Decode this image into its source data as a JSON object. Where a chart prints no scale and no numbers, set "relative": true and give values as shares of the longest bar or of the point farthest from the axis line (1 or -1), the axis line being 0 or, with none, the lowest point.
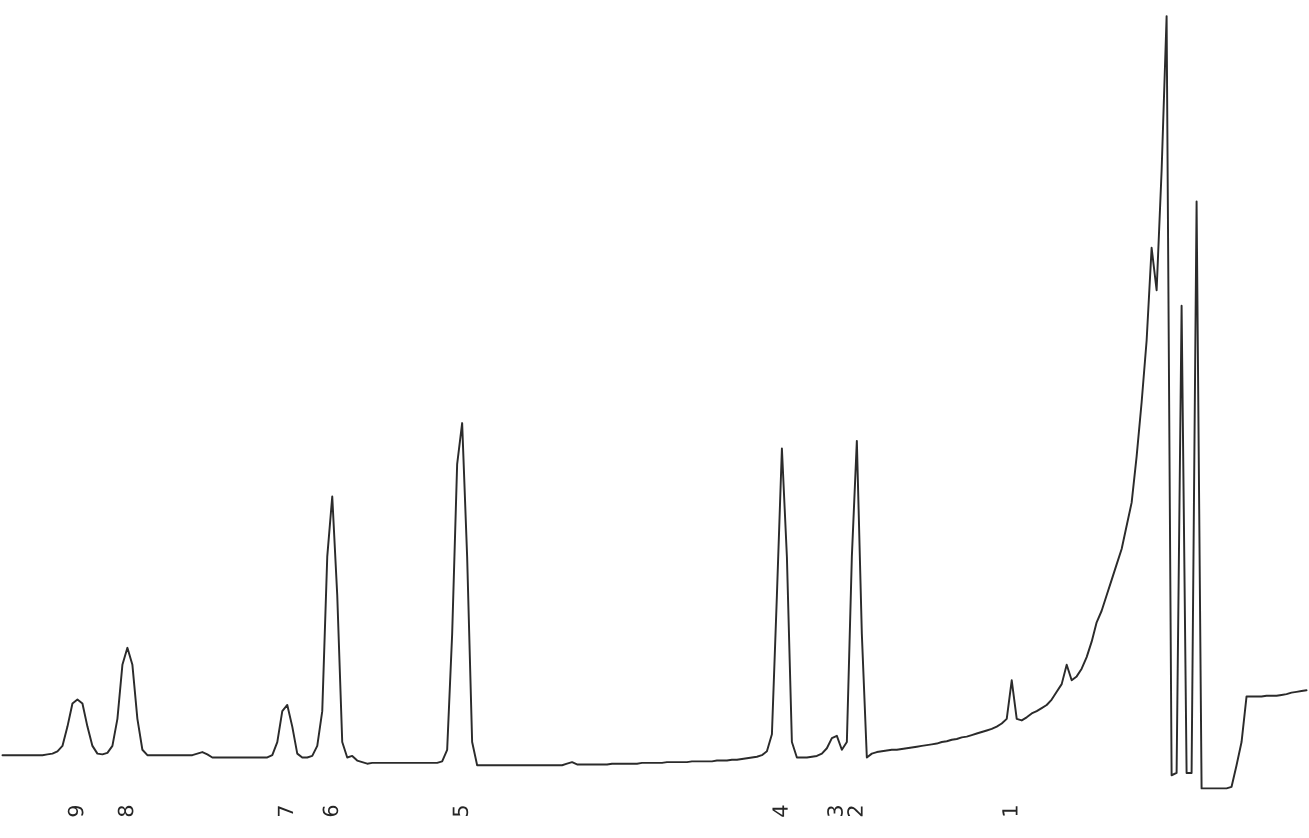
{
  "chart_data": {
    "type": "line",
    "relative": true,
    "grid": false,
    "legend": false,
    "categories": [
      null,
      null,
      null,
      null,
      null,
      null,
      null,
      null,
      null,
      null,
      null,
      null,
      null,
      null,
      null,
      "9",
      null,
      null,
      null,
      null,
      null,
      null,
      null,
      null,
      null,
      "8",
      null,
      null,
      null,
      null,
      null,
      null,
      null,
      null,
      null,
      null,
      null,
      null,
      null,
      null,
      null,
      null,
      null,
      null,
      null,
      null,
      null,
      null,
      null,
      null,
      null,
      null,
      null,
      null,
      null,
      null,
      null,
      "7",
      null,
      null,
      null,
      null,
      null,
      null,
      null,
      null,
      "6",
      null,
      null,
      null,
      null,
      null,
      null,
      null,
      null,
      null,
      null,
      null,
      null,
      null,
      null,
      null,
      null,
      null,
      null,
      null,
      null,
      null,
      null,
      null,
      null,
      null,
      "5",
      null,
      null,
      null,
      null,
      null,
      null,
      null,
      null,
      null,
      null,
      null,
      null,
      null,
      null,
      null,
      null,
      null,
      null,
      null,
      null,
      null,
      null,
      null,
      null,
      null,
      null,
      null,
      null,
      null,
      null,
      null,
      null,
      null,
      null,
      null,
      null,
      null,
      null,
      null,
      null,
      null,
      null,
      null,
      null,
      null,
      null,
      null,
      null,
      null,
      null,
      null,
      null,
      null,
      null,
      null,
      null,
      null,
      null,
      null,
      null,
      null,
      null,
      null,
      "4",
      null,
      null,
      null,
      null,
      null,
      null,
      null,
      null,
      null,
      null,
      "3",
      null,
      null,
      null,
      "2",
      null,
      null,
      null,
      null,
      null,
      null,
      null,
      null,
      null,
      null,
      null,
      null,
      null,
      null,
      null,
      null,
      null,
      null,
      null,
      null,
      null,
      null,
      null,
      null,
      null,
      null,
      null,
      null,
      null,
      null,
      "1",
      null,
      null,
      null,
      null,
      null,
      null,
      null,
      null,
      null,
      null,
      null,
      null,
      null,
      null,
      null,
      null,
      null,
      null,
      null,
      null,
      null,
      null,
      null,
      null,
      null,
      null,
      null,
      null,
      null,
      null,
      null,
      null,
      null,
      null,
      null,
      null,
      null,
      null,
      null,
      null,
      null,
      null,
      null,
      null,
      null,
      null,
      null,
      null,
      null,
      null,
      null,
      null,
      null,
      null,
      null,
      null,
      null,
      null,
      null
    ],
    "series": [
      {
        "color": "#2b2b2b",
        "values": [
          0.043,
          0.043,
          0.043,
          0.043,
          0.043,
          0.043,
          0.043,
          0.043,
          0.043,
          0.044,
          0.045,
          0.048,
          0.055,
          0.08,
          0.11,
          0.115,
          0.11,
          0.08,
          0.055,
          0.045,
          0.044,
          0.046,
          0.055,
          0.09,
          0.16,
          0.182,
          0.16,
          0.09,
          0.05,
          0.043,
          0.043,
          0.043,
          0.043,
          0.043,
          0.043,
          0.043,
          0.043,
          0.043,
          0.043,
          0.045,
          0.047,
          0.044,
          0.04,
          0.04,
          0.04,
          0.04,
          0.04,
          0.04,
          0.04,
          0.04,
          0.04,
          0.04,
          0.04,
          0.04,
          0.043,
          0.06,
          0.1,
          0.108,
          0.08,
          0.045,
          0.04,
          0.04,
          0.042,
          0.055,
          0.1,
          0.3,
          0.378,
          0.25,
          0.06,
          0.04,
          0.042,
          0.036,
          0.034,
          0.032,
          0.033,
          0.033,
          0.033,
          0.033,
          0.033,
          0.033,
          0.033,
          0.033,
          0.033,
          0.033,
          0.033,
          0.033,
          0.033,
          0.033,
          0.035,
          0.05,
          0.2,
          0.42,
          0.473,
          0.3,
          0.06,
          0.03,
          0.03,
          0.03,
          0.03,
          0.03,
          0.03,
          0.03,
          0.03,
          0.03,
          0.03,
          0.03,
          0.03,
          0.03,
          0.03,
          0.03,
          0.03,
          0.03,
          0.03,
          0.032,
          0.034,
          0.031,
          0.031,
          0.031,
          0.031,
          0.031,
          0.031,
          0.031,
          0.032,
          0.032,
          0.032,
          0.032,
          0.032,
          0.032,
          0.033,
          0.033,
          0.033,
          0.033,
          0.033,
          0.034,
          0.034,
          0.034,
          0.034,
          0.034,
          0.035,
          0.035,
          0.035,
          0.035,
          0.035,
          0.036,
          0.036,
          0.036,
          0.037,
          0.037,
          0.038,
          0.039,
          0.04,
          0.041,
          0.043,
          0.048,
          0.07,
          0.25,
          0.44,
          0.3,
          0.06,
          0.04,
          0.04,
          0.04,
          0.041,
          0.042,
          0.045,
          0.052,
          0.065,
          0.068,
          0.05,
          0.06,
          0.3,
          0.45,
          0.2,
          0.04,
          0.045,
          0.047,
          0.048,
          0.049,
          0.05,
          0.05,
          0.051,
          0.052,
          0.053,
          0.054,
          0.055,
          0.056,
          0.057,
          0.058,
          0.06,
          0.061,
          0.063,
          0.064,
          0.066,
          0.067,
          0.069,
          0.071,
          0.073,
          0.075,
          0.077,
          0.08,
          0.084,
          0.09,
          0.14,
          0.09,
          0.088,
          0.092,
          0.097,
          0.1,
          0.104,
          0.108,
          0.115,
          0.125,
          0.135,
          0.16,
          0.14,
          0.145,
          0.155,
          0.17,
          0.19,
          0.215,
          0.23,
          0.25,
          0.27,
          0.29,
          0.31,
          0.34,
          0.37,
          0.43,
          0.5,
          0.58,
          0.7,
          0.645,
          0.8,
          1.0,
          0.017,
          0.02,
          0.625,
          0.02,
          0.02,
          0.76,
          0.0,
          0.0,
          0.0,
          0.0,
          0.0,
          0.0,
          0.002,
          0.03,
          0.06,
          0.119,
          0.119,
          0.119,
          0.119,
          0.12,
          0.12,
          0.12,
          0.121,
          0.122,
          0.124,
          0.125,
          0.126,
          0.127
        ]
      }
    ]
  }
}
